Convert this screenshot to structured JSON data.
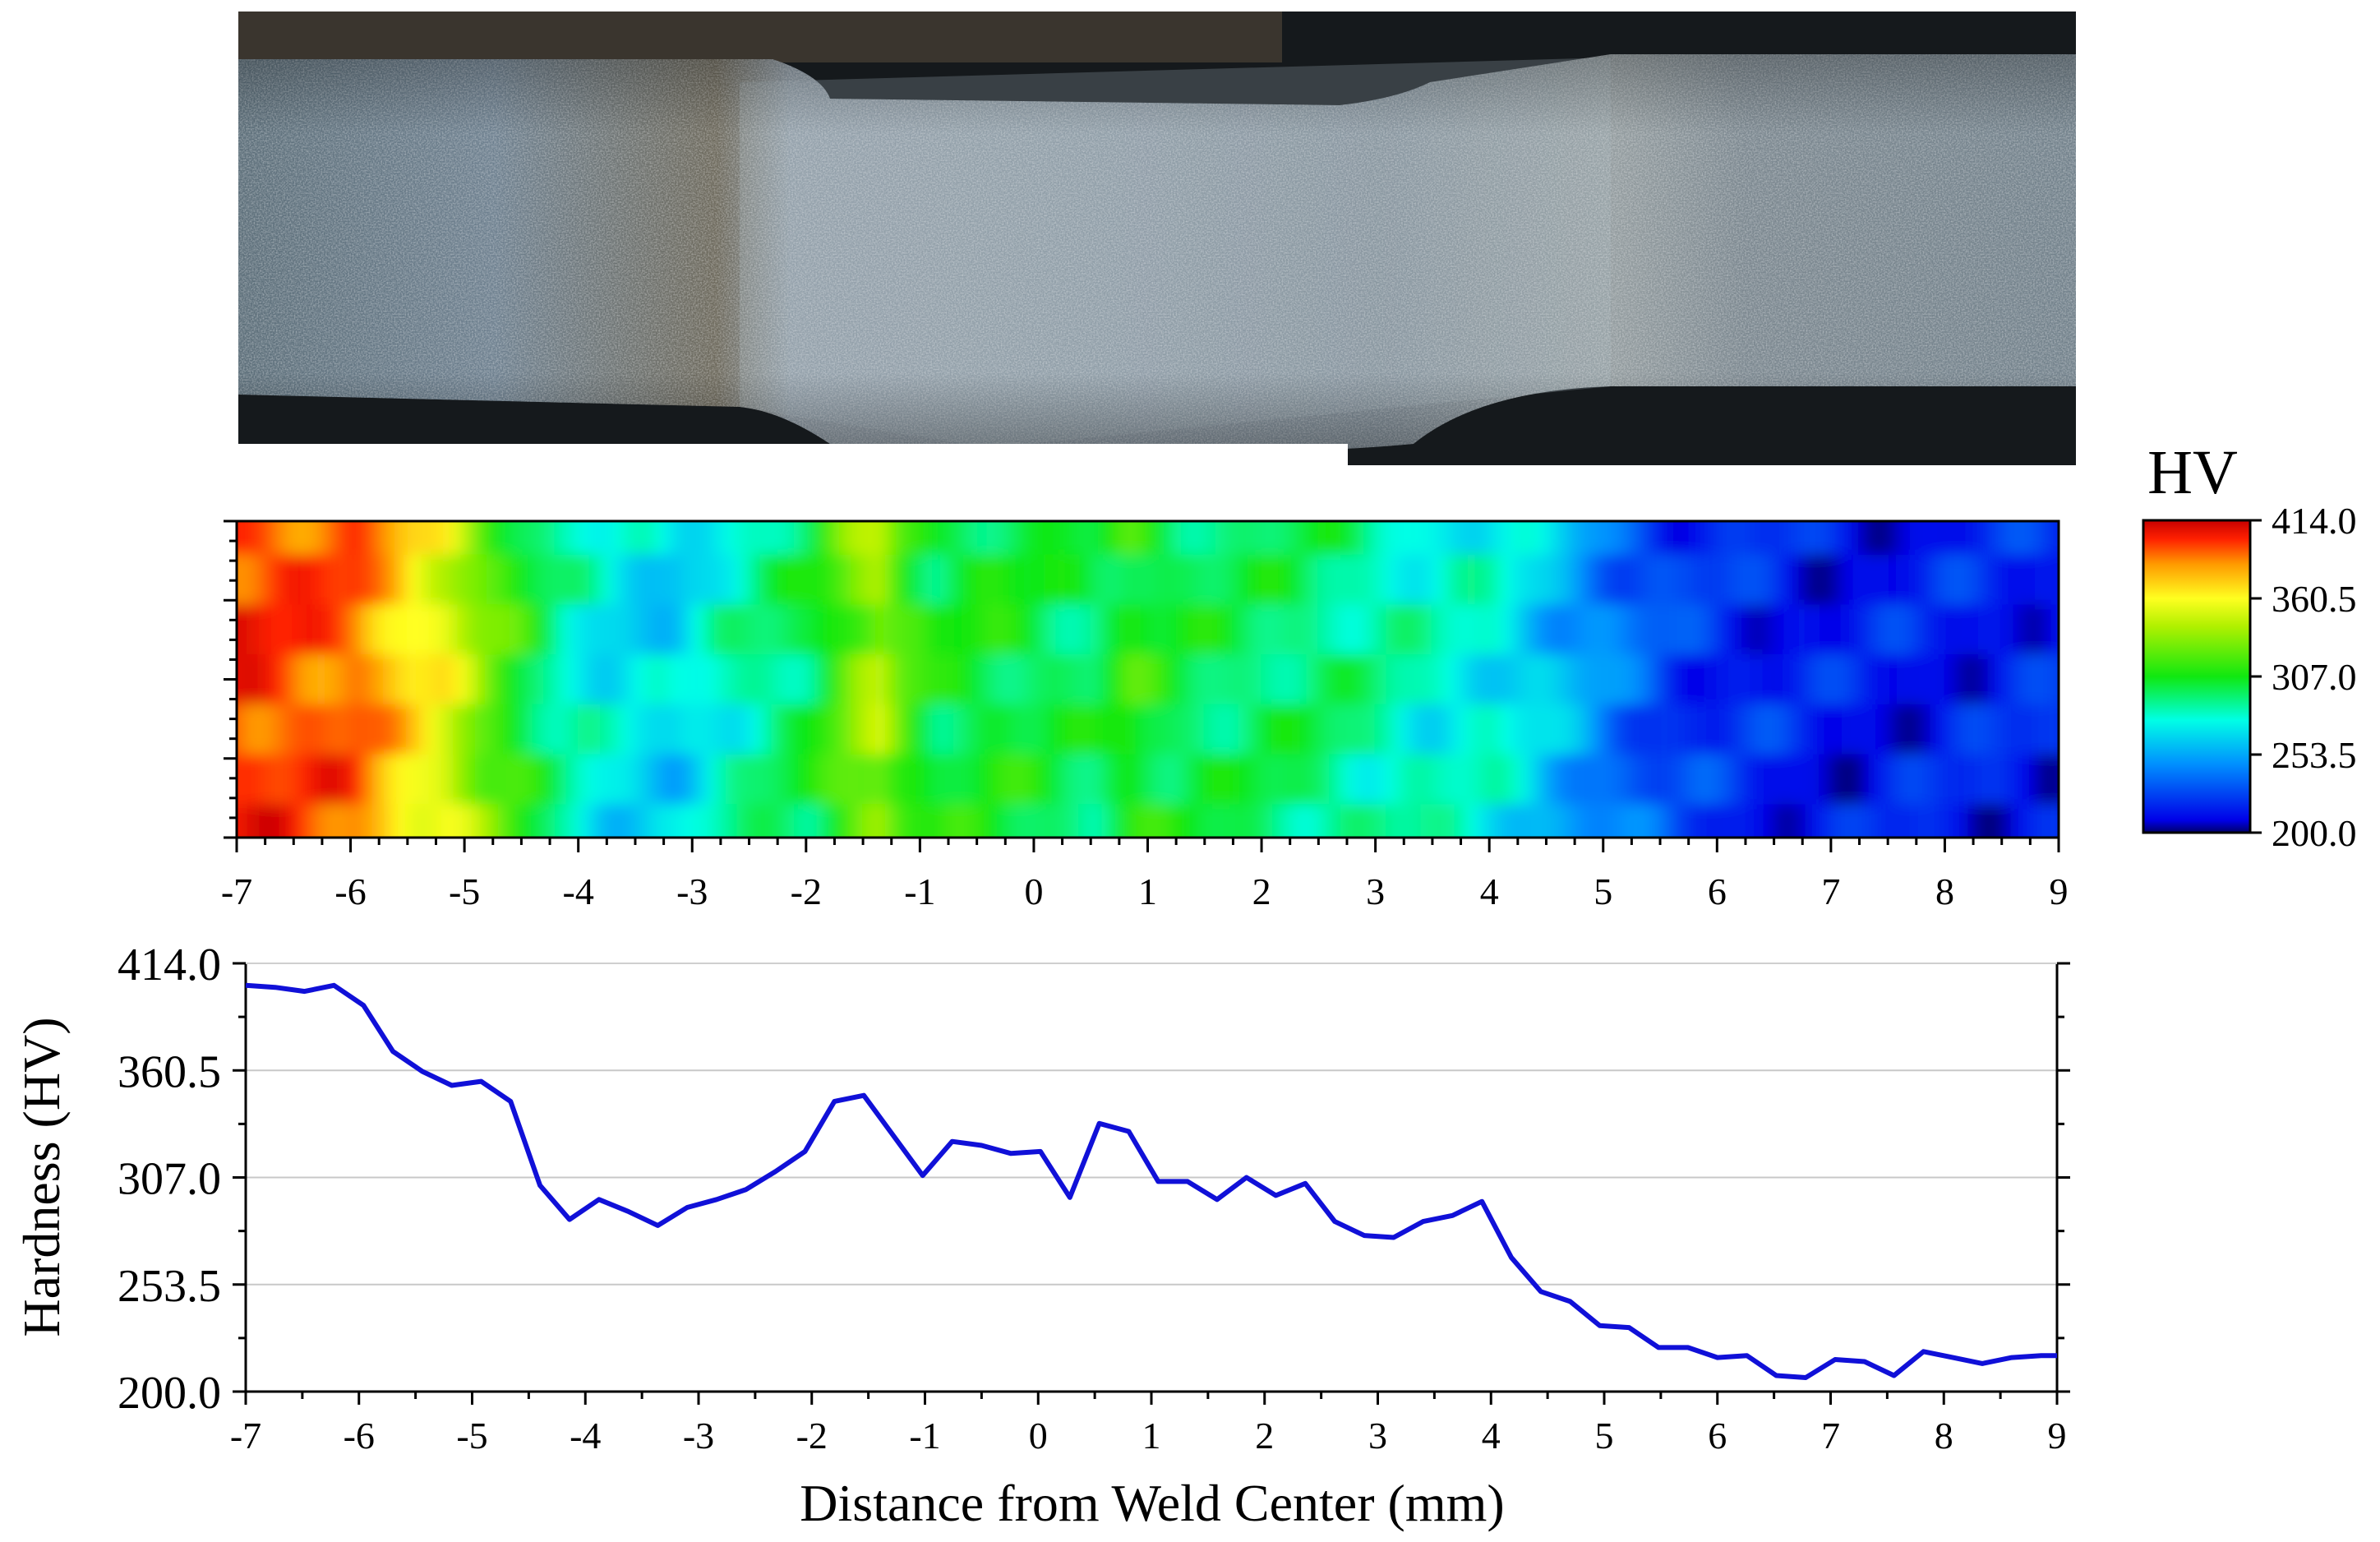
{
  "micrograph": {
    "description": "weld cross-section macrograph"
  },
  "colorbar": {
    "title": "HV",
    "tick_labels": [
      "414.0",
      "360.5",
      "307.0",
      "253.5",
      "200.0"
    ],
    "tick_values": [
      414.0,
      360.5,
      307.0,
      253.5,
      200.0
    ],
    "colors": [
      "#000080",
      "#0000ff",
      "#00ffff",
      "#00ff00",
      "#ffff00",
      "#ff8000",
      "#ff0000",
      "#c00000"
    ]
  },
  "contour_map": {
    "x_tick_labels": [
      "-7",
      "-6",
      "-5",
      "-4",
      "-3",
      "-2",
      "-1",
      "0",
      "1",
      "2",
      "3",
      "4",
      "5",
      "6",
      "7",
      "8",
      "9"
    ],
    "x_min": -7,
    "x_max": 9,
    "hardness_by_x": [
      [
        -7.0,
        400
      ],
      [
        -6.5,
        395
      ],
      [
        -6.0,
        392
      ],
      [
        -5.5,
        365
      ],
      [
        -5.2,
        355
      ],
      [
        -4.9,
        330
      ],
      [
        -4.6,
        312
      ],
      [
        -4.2,
        285
      ],
      [
        -3.8,
        272
      ],
      [
        -3.2,
        265
      ],
      [
        -2.8,
        280
      ],
      [
        -2.4,
        290
      ],
      [
        -2.0,
        300
      ],
      [
        -1.6,
        330
      ],
      [
        -1.4,
        340
      ],
      [
        -1.2,
        320
      ],
      [
        -0.9,
        302
      ],
      [
        -0.4,
        305
      ],
      [
        0.0,
        300
      ],
      [
        0.5,
        296
      ],
      [
        0.8,
        312
      ],
      [
        1.2,
        300
      ],
      [
        1.7,
        296
      ],
      [
        2.2,
        296
      ],
      [
        2.6,
        292
      ],
      [
        3.0,
        286
      ],
      [
        3.5,
        278
      ],
      [
        4.0,
        276
      ],
      [
        4.5,
        260
      ],
      [
        4.8,
        250
      ],
      [
        5.2,
        236
      ],
      [
        5.6,
        224
      ],
      [
        6.0,
        220
      ],
      [
        7.0,
        214
      ],
      [
        8.0,
        216
      ],
      [
        9.0,
        218
      ]
    ]
  },
  "chart_data": {
    "type": "line",
    "title": "",
    "xlabel": "Distance from Weld Center (mm)",
    "ylabel": "Hardness (HV)",
    "xlim": [
      -7,
      9
    ],
    "ylim": [
      200.0,
      414.0
    ],
    "x_tick_labels": [
      "-7",
      "-6",
      "-5",
      "-4",
      "-3",
      "-2",
      "-1",
      "0",
      "1",
      "2",
      "3",
      "4",
      "5",
      "6",
      "7",
      "8",
      "9"
    ],
    "x_ticks": [
      -7,
      -6,
      -5,
      -4,
      -3,
      -2,
      -1,
      0,
      1,
      2,
      3,
      4,
      5,
      6,
      7,
      8,
      9
    ],
    "y_tick_labels": [
      "414.0",
      "360.5",
      "307.0",
      "253.5",
      "200.0"
    ],
    "y_ticks": [
      414.0,
      360.5,
      307.0,
      253.5,
      200.0
    ],
    "grid": "horizontal",
    "series": [
      {
        "color": "#1010d8",
        "x": [
          -7.0,
          -6.74,
          -6.48,
          -6.22,
          -5.96,
          -5.7,
          -5.44,
          -5.18,
          -4.92,
          -4.66,
          -4.4,
          -4.14,
          -3.88,
          -3.62,
          -3.36,
          -3.1,
          -2.84,
          -2.58,
          -2.32,
          -2.06,
          -1.8,
          -1.54,
          -1.28,
          -1.02,
          -0.76,
          -0.5,
          -0.24,
          0.02,
          0.28,
          0.54,
          0.8,
          1.06,
          1.32,
          1.58,
          1.84,
          2.1,
          2.36,
          2.62,
          2.88,
          3.14,
          3.4,
          3.66,
          3.92,
          4.18,
          4.44,
          4.7,
          4.96,
          5.22,
          5.48,
          5.74,
          6.0,
          6.26,
          6.52,
          6.78,
          7.04,
          7.3,
          7.56,
          7.82,
          8.08,
          8.34,
          8.6,
          8.86,
          9.0
        ],
        "y": [
          403,
          402,
          400,
          403,
          393,
          370,
          360,
          353,
          355,
          345,
          303,
          286,
          296,
          290,
          283,
          292,
          296,
          301,
          310,
          320,
          345,
          348,
          328,
          308,
          325,
          323,
          319,
          320,
          297,
          334,
          330,
          305,
          305,
          296,
          307,
          298,
          304,
          285,
          278,
          277,
          285,
          288,
          295,
          267,
          250,
          245,
          233,
          232,
          222,
          222,
          217,
          218,
          208,
          207,
          216,
          215,
          208,
          220,
          217,
          214,
          217,
          218,
          218
        ]
      }
    ]
  }
}
